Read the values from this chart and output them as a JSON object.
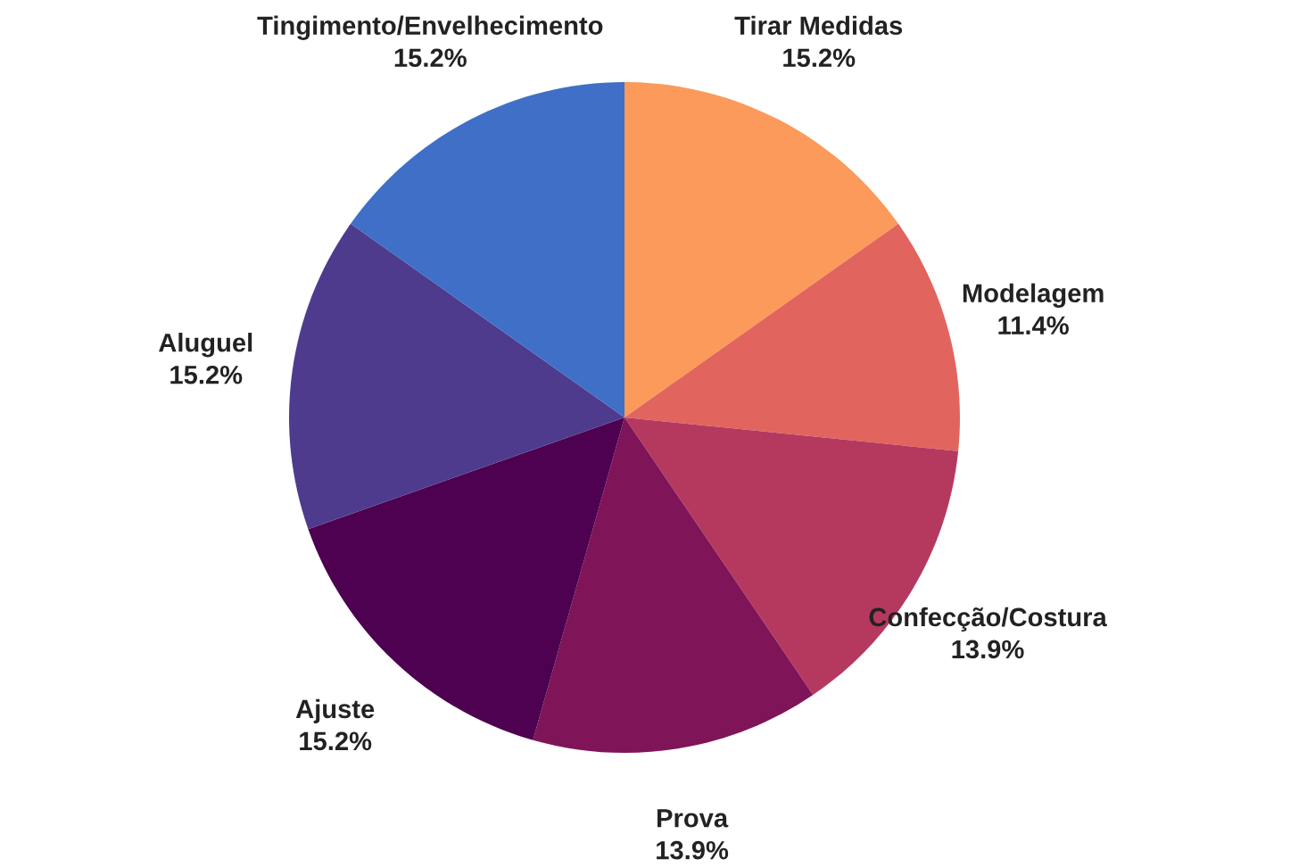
{
  "chart_data": {
    "type": "pie",
    "categories": [
      "Tirar Medidas",
      "Modelagem",
      "Confecção/Costura",
      "Prova",
      "Ajuste",
      "Aluguel",
      "Tingimento/Envelhecimento"
    ],
    "values": [
      15.2,
      11.4,
      13.9,
      13.9,
      15.2,
      15.2,
      15.2
    ],
    "value_labels": [
      "15.2%",
      "11.4%",
      "13.9%",
      "13.9%",
      "15.2%",
      "15.2%",
      "15.2%"
    ],
    "colors": [
      "#fb9a5a",
      "#e1655e",
      "#b5395f",
      "#7f1459",
      "#4d0150",
      "#4e3b8e",
      "#3f6fc6"
    ]
  }
}
